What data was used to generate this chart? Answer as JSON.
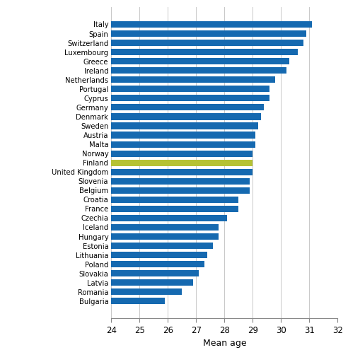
{
  "countries": [
    "Italy",
    "Spain",
    "Switzerland",
    "Luxembourg",
    "Greece",
    "Ireland",
    "Netherlands",
    "Portugal",
    "Cyprus",
    "Germany",
    "Denmark",
    "Sweden",
    "Austria",
    "Malta",
    "Norway",
    "Finland",
    "United Kingdom",
    "Slovenia",
    "Belgium",
    "Croatia",
    "France",
    "Czechia",
    "Iceland",
    "Hungary",
    "Estonia",
    "Lithuania",
    "Poland",
    "Slovakia",
    "Latvia",
    "Romania",
    "Bulgaria"
  ],
  "values": [
    31.1,
    30.9,
    30.8,
    30.6,
    30.3,
    30.2,
    29.8,
    29.6,
    29.6,
    29.4,
    29.3,
    29.2,
    29.1,
    29.1,
    29.0,
    29.0,
    29.0,
    28.9,
    28.9,
    28.5,
    28.5,
    28.1,
    27.8,
    27.8,
    27.6,
    27.4,
    27.3,
    27.1,
    26.9,
    26.5,
    25.9
  ],
  "bar_colors": [
    "#1569b0",
    "#1569b0",
    "#1569b0",
    "#1569b0",
    "#1569b0",
    "#1569b0",
    "#1569b0",
    "#1569b0",
    "#1569b0",
    "#1569b0",
    "#1569b0",
    "#1569b0",
    "#1569b0",
    "#1569b0",
    "#1569b0",
    "#b5c234",
    "#1569b0",
    "#1569b0",
    "#1569b0",
    "#1569b0",
    "#1569b0",
    "#1569b0",
    "#1569b0",
    "#1569b0",
    "#1569b0",
    "#1569b0",
    "#1569b0",
    "#1569b0",
    "#1569b0",
    "#1569b0",
    "#1569b0"
  ],
  "xlim": [
    24,
    32
  ],
  "xlim_left": 24,
  "xticks": [
    24,
    25,
    26,
    27,
    28,
    29,
    30,
    31,
    32
  ],
  "xlabel": "Mean age",
  "background_color": "#ffffff",
  "grid_color": "#c8c8c8",
  "bar_height": 0.7,
  "label_fontsize": 7.2,
  "tick_fontsize": 8.5,
  "xlabel_fontsize": 9.0
}
